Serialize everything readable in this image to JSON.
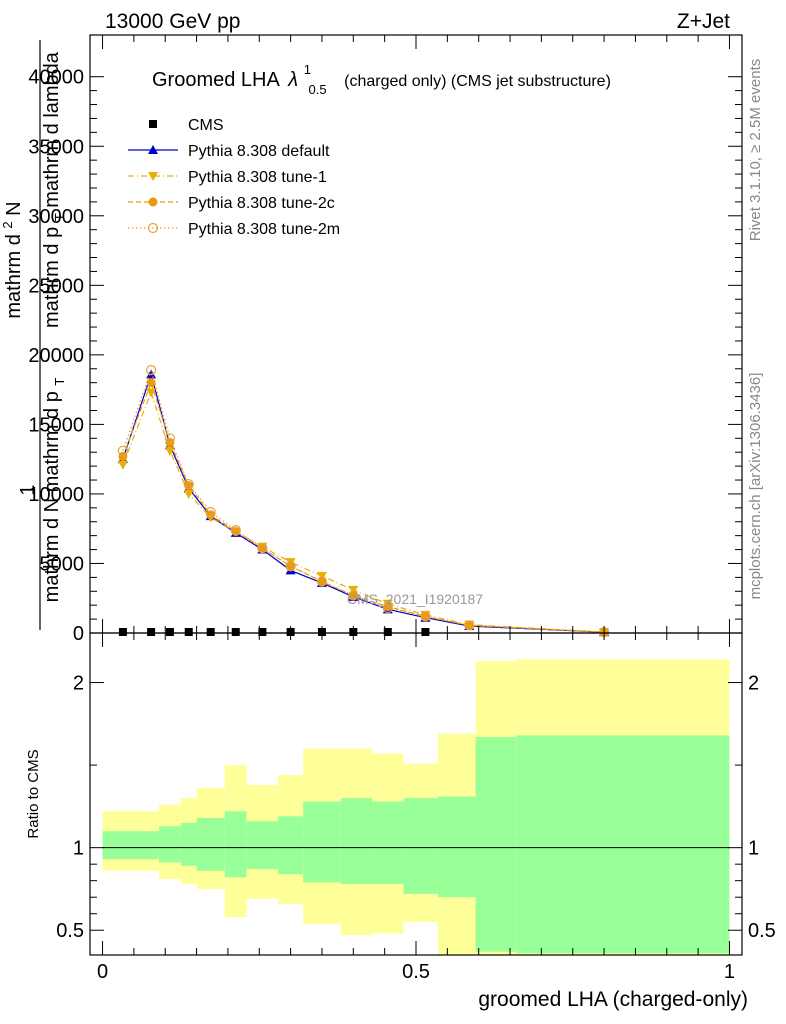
{
  "header": {
    "left": "13000 GeV pp",
    "right": "Z+Jet"
  },
  "title": {
    "main": "Groomed LHA",
    "lambda": "λ",
    "sup": "1",
    "sub": "0.5",
    "rest": "(charged only) (CMS jet substructure)"
  },
  "side_labels": {
    "rivet": "Rivet 3.1.10, ≥ 2.5M events",
    "mcplots": "mcplots.cern.ch [arXiv:1306.3436]"
  },
  "watermark": "CMS_2021_I1920187",
  "ylabel_main": {
    "one": "1",
    "denominator": "mathrm d N mathrm d p",
    "den_sub": "T",
    "numerator": "mathrm d",
    "num_sup": "2",
    "numerator_cont": "N",
    "num_den": "mathrm d p",
    "num_den_sub": "T",
    "num_den_rest": "mathrm d lambda"
  },
  "ylabel_ratio": "Ratio to CMS",
  "xlabel": "groomed LHA (charged-only)",
  "colors": {
    "cms": "#000000",
    "default": "#0000cc",
    "tune1": "#e8b000",
    "tune2c": "#e89a10",
    "tune2m": "#e8a040",
    "band_outer": "#ffff99",
    "band_inner": "#99ff99"
  },
  "chart_data": {
    "type": "line",
    "xlim": [
      -0.02,
      1.02
    ],
    "main": {
      "ylim": [
        0,
        43000
      ],
      "yticks": [
        0,
        5000,
        10000,
        15000,
        20000,
        25000,
        30000,
        35000,
        40000
      ],
      "ytick_labels": [
        "0",
        "5000",
        "10000",
        "15000",
        "20000",
        "25000",
        "30000",
        "35000",
        "40000"
      ],
      "legend_position": "top-left",
      "series": [
        {
          "key": "cms",
          "name": "CMS",
          "marker": "square",
          "x": [
            0.0325,
            0.0775,
            0.1075,
            0.1375,
            0.1725,
            0.2125,
            0.255,
            0.3,
            0.35,
            0.4,
            0.455,
            0.515
          ],
          "y": [
            0,
            0,
            0,
            0,
            0,
            0,
            0,
            0,
            0,
            0,
            0,
            0
          ]
        },
        {
          "key": "default",
          "name": "Pythia 8.308 default",
          "marker": "triangle-up",
          "line": "solid",
          "x": [
            0.0325,
            0.0775,
            0.1075,
            0.1375,
            0.1725,
            0.2125,
            0.255,
            0.3,
            0.35,
            0.4,
            0.455,
            0.515,
            0.585,
            0.8
          ],
          "y": [
            12500,
            18600,
            13500,
            10400,
            8400,
            7200,
            6000,
            4500,
            3600,
            2600,
            1700,
            1100,
            500,
            60
          ]
        },
        {
          "key": "tune1",
          "name": "Pythia 8.308 tune-1",
          "marker": "triangle-down",
          "line": "dashdot",
          "x": [
            0.0325,
            0.0775,
            0.1075,
            0.1375,
            0.1725,
            0.2125,
            0.255,
            0.3,
            0.35,
            0.4,
            0.455,
            0.515,
            0.585,
            0.8
          ],
          "y": [
            12100,
            17300,
            13100,
            10000,
            8300,
            7300,
            6200,
            5100,
            4100,
            3100,
            2100,
            1300,
            600,
            70
          ]
        },
        {
          "key": "tune2c",
          "name": "Pythia 8.308 tune-2c",
          "marker": "circle",
          "line": "dashed",
          "x": [
            0.0325,
            0.0775,
            0.1075,
            0.1375,
            0.1725,
            0.2125,
            0.255,
            0.3,
            0.35,
            0.4,
            0.455,
            0.515,
            0.585,
            0.8
          ],
          "y": [
            12700,
            18000,
            13700,
            10600,
            8500,
            7300,
            6100,
            4800,
            3700,
            2700,
            1900,
            1200,
            550,
            60
          ]
        },
        {
          "key": "tune2m",
          "name": "Pythia 8.308 tune-2m",
          "marker": "circle-open",
          "line": "dotted",
          "x": [
            0.0325,
            0.0775,
            0.1075,
            0.1375,
            0.1725,
            0.2125,
            0.255,
            0.3,
            0.35,
            0.4,
            0.455,
            0.515,
            0.585,
            0.8
          ],
          "y": [
            13100,
            18900,
            14000,
            10700,
            8700,
            7400,
            6100,
            4800,
            3700,
            2700,
            1800,
            1200,
            550,
            60
          ]
        }
      ]
    },
    "ratio": {
      "ylim": [
        0.35,
        2.3
      ],
      "yticks": [
        0.5,
        1,
        2
      ],
      "ytick_labels": [
        "0.5",
        "1",
        "2"
      ],
      "xticks": [
        0,
        0.5,
        1
      ],
      "xtick_labels": [
        "0",
        "0.5",
        "1"
      ],
      "reference": 1,
      "bins": [
        {
          "lo": 0.0,
          "hi": 0.055,
          "outer": [
            0.86,
            1.22
          ],
          "inner": [
            0.93,
            1.1
          ]
        },
        {
          "lo": 0.055,
          "hi": 0.09,
          "outer": [
            0.86,
            1.22
          ],
          "inner": [
            0.93,
            1.1
          ]
        },
        {
          "lo": 0.09,
          "hi": 0.125,
          "outer": [
            0.81,
            1.26
          ],
          "inner": [
            0.91,
            1.13
          ]
        },
        {
          "lo": 0.125,
          "hi": 0.15,
          "outer": [
            0.78,
            1.3
          ],
          "inner": [
            0.89,
            1.15
          ]
        },
        {
          "lo": 0.15,
          "hi": 0.195,
          "outer": [
            0.75,
            1.36
          ],
          "inner": [
            0.86,
            1.18
          ]
        },
        {
          "lo": 0.195,
          "hi": 0.23,
          "outer": [
            0.58,
            1.5
          ],
          "inner": [
            0.82,
            1.22
          ]
        },
        {
          "lo": 0.23,
          "hi": 0.28,
          "outer": [
            0.69,
            1.38
          ],
          "inner": [
            0.87,
            1.16
          ]
        },
        {
          "lo": 0.28,
          "hi": 0.32,
          "outer": [
            0.66,
            1.44
          ],
          "inner": [
            0.84,
            1.19
          ]
        },
        {
          "lo": 0.32,
          "hi": 0.38,
          "outer": [
            0.54,
            1.6
          ],
          "inner": [
            0.79,
            1.28
          ]
        },
        {
          "lo": 0.38,
          "hi": 0.43,
          "outer": [
            0.47,
            1.6
          ],
          "inner": [
            0.78,
            1.3
          ]
        },
        {
          "lo": 0.43,
          "hi": 0.48,
          "outer": [
            0.48,
            1.57
          ],
          "inner": [
            0.78,
            1.28
          ]
        },
        {
          "lo": 0.48,
          "hi": 0.535,
          "outer": [
            0.55,
            1.51
          ],
          "inner": [
            0.72,
            1.3
          ]
        },
        {
          "lo": 0.535,
          "hi": 0.595,
          "outer": [
            0.35,
            1.69
          ],
          "inner": [
            0.7,
            1.31
          ]
        },
        {
          "lo": 0.595,
          "hi": 0.66,
          "outer": [
            0.35,
            2.13
          ],
          "inner": [
            0.37,
            1.67
          ]
        },
        {
          "lo": 0.66,
          "hi": 1.0,
          "outer": [
            0.35,
            2.14
          ],
          "inner": [
            0.36,
            1.68
          ]
        }
      ]
    }
  }
}
